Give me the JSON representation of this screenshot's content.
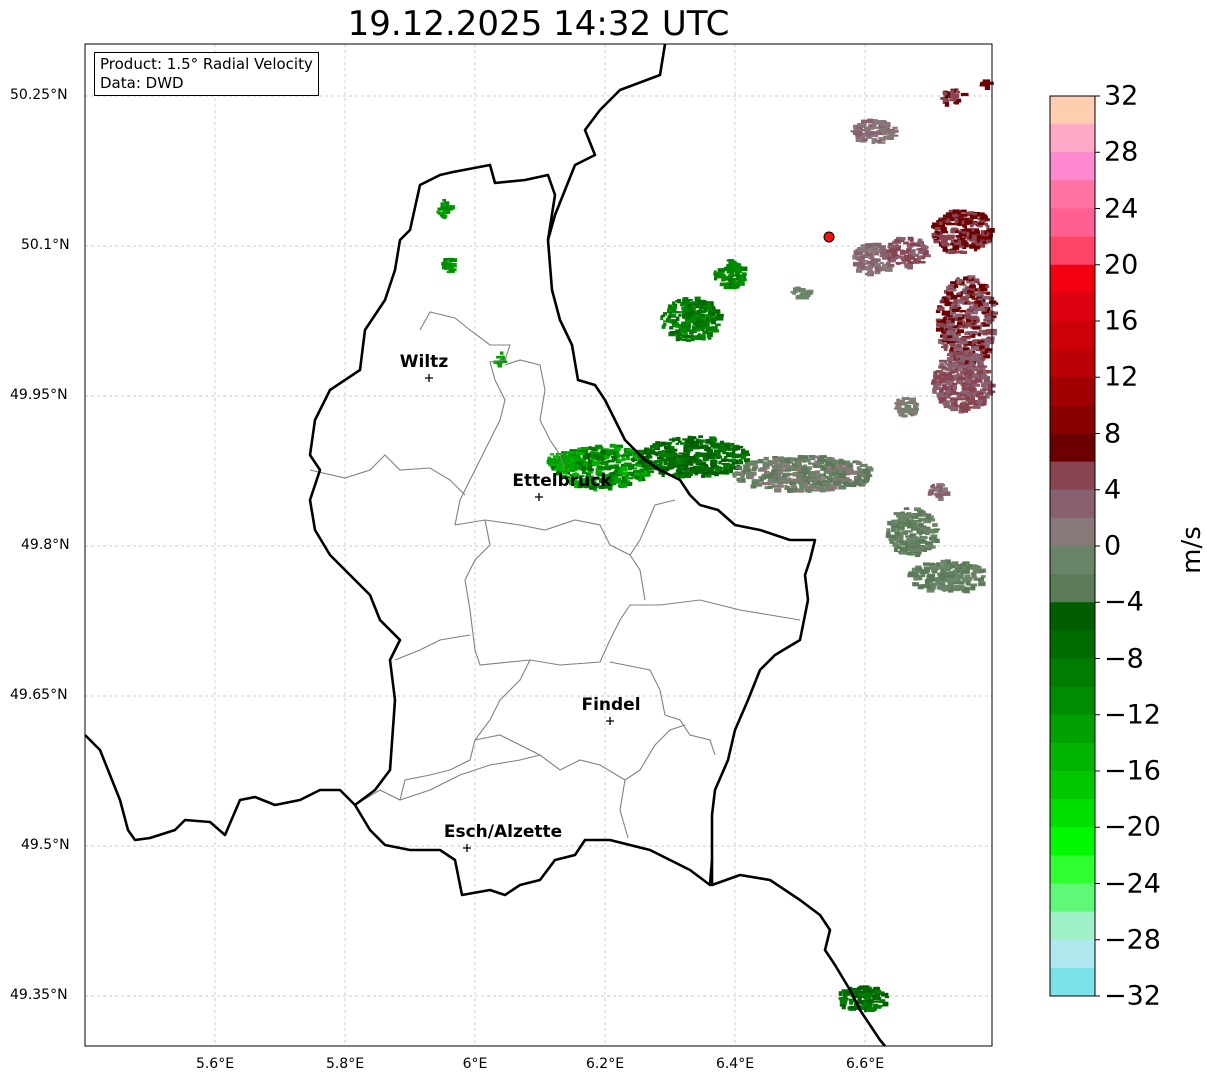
{
  "title": "19.12.2025 14:32 UTC",
  "info_box": {
    "product": "Product: 1.5° Radial Velocity",
    "source": "Data: DWD"
  },
  "axes": {
    "lat_ticks": [
      "50.25°N",
      "50.1°N",
      "49.95°N",
      "49.8°N",
      "49.65°N",
      "49.5°N",
      "49.35°N"
    ],
    "lon_ticks": [
      "5.6°E",
      "5.8°E",
      "6°E",
      "6.2°E",
      "6.4°E",
      "6.6°E"
    ]
  },
  "cities": [
    "Wiltz",
    "Ettelbruck",
    "Findel",
    "Esch/Alzette"
  ],
  "colorbar": {
    "unit": "m/s",
    "ticks": [
      "32",
      "28",
      "24",
      "20",
      "16",
      "12",
      "8",
      "4",
      "0",
      "−4",
      "−8",
      "−12",
      "−16",
      "−20",
      "−24",
      "−28",
      "−32"
    ],
    "colors": [
      "#ffcdb0",
      "#ffa8c8",
      "#ff88d0",
      "#ff72a4",
      "#ff6090",
      "#ff4468",
      "#f20010",
      "#dc0010",
      "#cc0008",
      "#b80006",
      "#a00004",
      "#880000",
      "#6c0000",
      "#884450",
      "#886070",
      "#887878",
      "#6a8468",
      "#5a7a58",
      "#005e00",
      "#006c00",
      "#007c00",
      "#008c00",
      "#00a000",
      "#00b400",
      "#00c800",
      "#00e000",
      "#00f800",
      "#30ff30",
      "#60f878",
      "#a0f0c8",
      "#b0e8f0",
      "#7ce2ea"
    ]
  },
  "marker_color": "#ee1111"
}
